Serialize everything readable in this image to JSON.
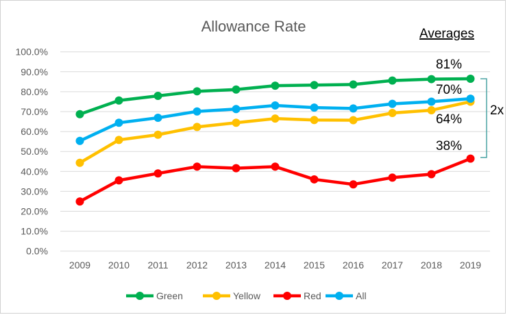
{
  "chart_data": {
    "type": "line",
    "title": "Allowance Rate",
    "xlabel": "",
    "ylabel": "",
    "x": [
      "2009",
      "2010",
      "2011",
      "2012",
      "2013",
      "2014",
      "2015",
      "2016",
      "2017",
      "2018",
      "2019"
    ],
    "ylim": [
      0,
      100
    ],
    "yticks": [
      "0.0%",
      "10.0%",
      "20.0%",
      "30.0%",
      "40.0%",
      "50.0%",
      "60.0%",
      "70.0%",
      "80.0%",
      "90.0%",
      "100.0%"
    ],
    "grid": true,
    "legend_position": "bottom",
    "series": [
      {
        "name": "Green",
        "color": "#00b050",
        "values": [
          68.7,
          75.6,
          77.9,
          80.2,
          81.1,
          83.0,
          83.3,
          83.6,
          85.6,
          86.3,
          86.5
        ]
      },
      {
        "name": "Yellow",
        "color": "#ffc000",
        "values": [
          44.3,
          55.8,
          58.4,
          62.3,
          64.4,
          66.5,
          65.8,
          65.7,
          69.3,
          70.7,
          75.0
        ]
      },
      {
        "name": "Red",
        "color": "#ff0000",
        "values": [
          24.9,
          35.5,
          39.0,
          42.4,
          41.6,
          42.4,
          36.0,
          33.5,
          36.9,
          38.6,
          46.4
        ]
      },
      {
        "name": "All",
        "color": "#00b0f0",
        "values": [
          55.3,
          64.4,
          66.9,
          70.1,
          71.3,
          73.1,
          72.0,
          71.6,
          73.9,
          75.0,
          76.5
        ]
      }
    ],
    "annotations": {
      "averages_heading": "Averages",
      "averages": [
        "81%",
        "70%",
        "64%",
        "38%"
      ],
      "bracket_label": "2x",
      "bracket_color": "#4aa3a3"
    }
  }
}
